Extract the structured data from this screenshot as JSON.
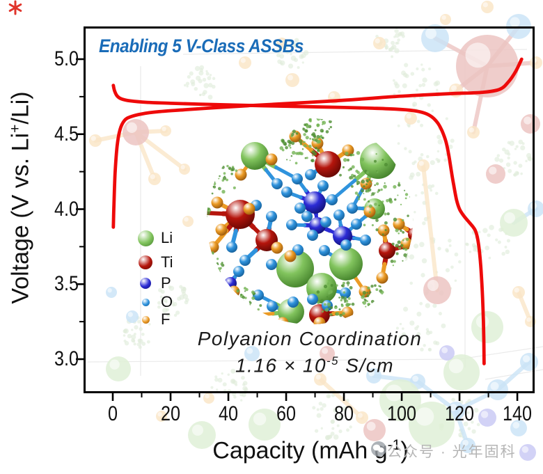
{
  "headline": "Enabling 5 V-Class ASSBs",
  "axis": {
    "y_label_prefix": "Voltage (V vs. Li",
    "y_label_sup": "+",
    "y_label_suffix": "/Li)",
    "x_label_prefix": "Capacity (mAh g",
    "x_label_sup": "-1",
    "x_label_suffix": ")"
  },
  "chart_data": {
    "type": "line",
    "title": "Enabling 5 V-Class ASSBs",
    "xlabel": "Capacity (mAh g⁻¹)",
    "ylabel": "Voltage (V vs. Li⁺/Li)",
    "xlim": [
      -10,
      146
    ],
    "ylim": [
      2.8,
      5.2
    ],
    "grid": false,
    "x_tick_values": [
      0,
      20,
      40,
      60,
      80,
      100,
      120,
      140
    ],
    "x_tick_labels": [
      "0",
      "20",
      "40",
      "60",
      "80",
      "100",
      "120",
      "140"
    ],
    "x_minor_tick_values": [
      10,
      30,
      50,
      70,
      90,
      110,
      130
    ],
    "y_tick_values": [
      5.0,
      4.5,
      4.0,
      3.5,
      3.0
    ],
    "y_tick_labels": [
      "5.0",
      "4.5",
      "4.0",
      "3.5",
      "3.0"
    ],
    "y_minor_tick_values": [
      3.25,
      3.75,
      4.25,
      4.75
    ],
    "series": [
      {
        "name": "charge",
        "color": "#ee0a0a",
        "points": [
          [
            0.2,
            3.88
          ],
          [
            0.4,
            4.03
          ],
          [
            0.8,
            4.24
          ],
          [
            1.5,
            4.42
          ],
          [
            2.5,
            4.53
          ],
          [
            4,
            4.59
          ],
          [
            6,
            4.615
          ],
          [
            10,
            4.635
          ],
          [
            16,
            4.65
          ],
          [
            25,
            4.663
          ],
          [
            35,
            4.676
          ],
          [
            47,
            4.69
          ],
          [
            60,
            4.704
          ],
          [
            75,
            4.72
          ],
          [
            88,
            4.737
          ],
          [
            97,
            4.75
          ],
          [
            107,
            4.761
          ],
          [
            118,
            4.771
          ],
          [
            128,
            4.779
          ],
          [
            134,
            4.8
          ],
          [
            137,
            4.85
          ],
          [
            139.5,
            4.92
          ],
          [
            141.5,
            5.0
          ]
        ]
      },
      {
        "name": "discharge",
        "color": "#ee0a0a",
        "points": [
          [
            0.2,
            4.825
          ],
          [
            0.6,
            4.79
          ],
          [
            1.5,
            4.755
          ],
          [
            3,
            4.735
          ],
          [
            6,
            4.722
          ],
          [
            12,
            4.712
          ],
          [
            20,
            4.706
          ],
          [
            30,
            4.7
          ],
          [
            42,
            4.694
          ],
          [
            55,
            4.688
          ],
          [
            68,
            4.683
          ],
          [
            80,
            4.678
          ],
          [
            90,
            4.673
          ],
          [
            98,
            4.667
          ],
          [
            104,
            4.657
          ],
          [
            108,
            4.64
          ],
          [
            110.5,
            4.614
          ],
          [
            112.5,
            4.573
          ],
          [
            114,
            4.52
          ],
          [
            115.3,
            4.45
          ],
          [
            116.3,
            4.36
          ],
          [
            117.2,
            4.25
          ],
          [
            118,
            4.16
          ],
          [
            119,
            4.06
          ],
          [
            120,
            4.0
          ],
          [
            121.5,
            3.955
          ],
          [
            123,
            3.92
          ],
          [
            124.5,
            3.886
          ],
          [
            125.5,
            3.856
          ],
          [
            126.3,
            3.8
          ],
          [
            127,
            3.7
          ],
          [
            127.6,
            3.55
          ],
          [
            128.1,
            3.35
          ],
          [
            128.4,
            3.15
          ],
          [
            128.5,
            2.97
          ]
        ]
      }
    ]
  },
  "legend": {
    "items": [
      {
        "label": "Li",
        "species": "Li",
        "symbol": "li-atom-icon"
      },
      {
        "label": "Ti",
        "species": "Ti",
        "symbol": "ti-atom-icon"
      },
      {
        "label": "P",
        "species": "P",
        "symbol": "p-atom-icon"
      },
      {
        "label": "O",
        "species": "O",
        "symbol": "o-atom-icon"
      },
      {
        "label": "F",
        "species": "F",
        "symbol": "f-atom-icon"
      }
    ]
  },
  "inset": {
    "caption_line1": "Polyanion Coordination",
    "caption_line2_prefix": "1.16 × 10",
    "caption_line2_sup": "-5",
    "caption_line2_suffix": " S/cm"
  },
  "watermark": {
    "icon": "wechat-official-account-icon",
    "label": "公众号 · 光年固科"
  },
  "colors": {
    "curve": "#ee0a0a",
    "headline": "#1a6cb8",
    "axis": "#000000",
    "text": "#111111",
    "watermark": "#b5b5b5",
    "watermark_icon": "#9aa0a6",
    "sparkle": "#e0342b",
    "isosurface_dark": "#4f8f33",
    "isosurface_light": "#74b455",
    "atoms": {
      "Li": {
        "base": "#82c45e",
        "dark": "#3f7d27"
      },
      "Ti": {
        "base": "#b5150c",
        "dark": "#5f0703"
      },
      "P": {
        "base": "#2b2bd5",
        "dark": "#10106e"
      },
      "O": {
        "base": "#2f93dd",
        "dark": "#135a92"
      },
      "F": {
        "base": "#eb9b25",
        "dark": "#92520a"
      }
    }
  }
}
